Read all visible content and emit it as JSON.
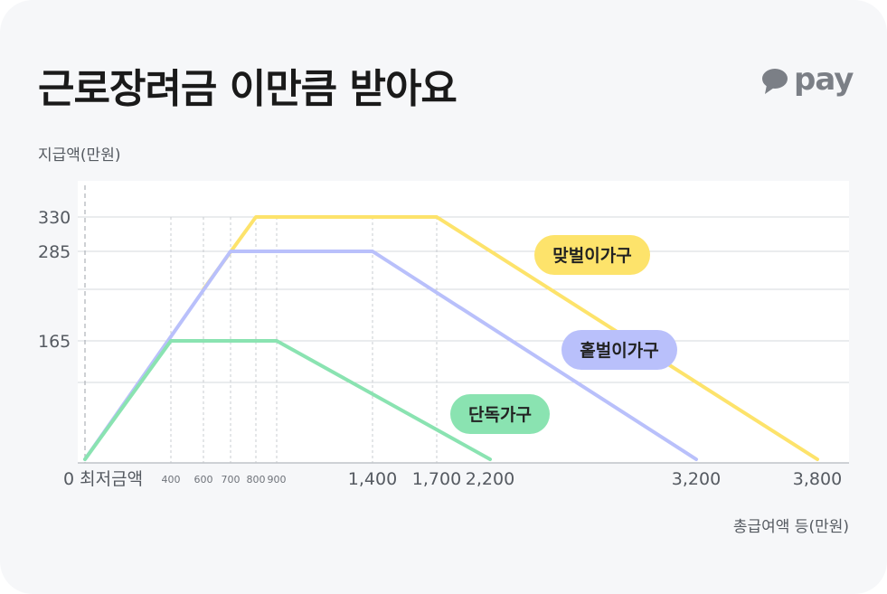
{
  "title": "근로장려금 이만큼 받아요",
  "logo": {
    "text": "pay",
    "icon": "speech-bubble-icon",
    "color": "#7b7f86"
  },
  "chart_data": {
    "type": "line",
    "ylabel": "지급액(만원)",
    "xlabel": "총급여액 등(만원)",
    "y_ticks": [
      {
        "value": 330,
        "label": "330"
      },
      {
        "value": 285,
        "label": "285"
      },
      {
        "value": 165,
        "label": "165"
      }
    ],
    "x_ticks_major": [
      {
        "value": 0,
        "label": "0 최저금액"
      },
      {
        "value": 1400,
        "label": "1,400"
      },
      {
        "value": 1700,
        "label": "1,700"
      },
      {
        "value": 2200,
        "label": "2,200"
      },
      {
        "value": 3200,
        "label": "3,200"
      },
      {
        "value": 3800,
        "label": "3,800"
      }
    ],
    "x_ticks_minor": [
      {
        "value": 400,
        "label": "400"
      },
      {
        "value": 600,
        "label": "600"
      },
      {
        "value": 700,
        "label": "700"
      },
      {
        "value": 800,
        "label": "800"
      },
      {
        "value": 900,
        "label": "900"
      }
    ],
    "series": [
      {
        "name": "맞벌이가구",
        "color": "#fde36b",
        "points": [
          [
            600,
            225
          ],
          [
            800,
            330
          ],
          [
            1700,
            330
          ],
          [
            3800,
            0
          ]
        ]
      },
      {
        "name": "홑벌이가구",
        "color": "#b9c0fb",
        "points": [
          [
            0,
            0
          ],
          [
            700,
            285
          ],
          [
            1400,
            285
          ],
          [
            3200,
            0
          ]
        ]
      },
      {
        "name": "단독가구",
        "color": "#8ae3b1",
        "points": [
          [
            0,
            0
          ],
          [
            400,
            165
          ],
          [
            900,
            165
          ],
          [
            2200,
            0
          ]
        ]
      }
    ]
  }
}
